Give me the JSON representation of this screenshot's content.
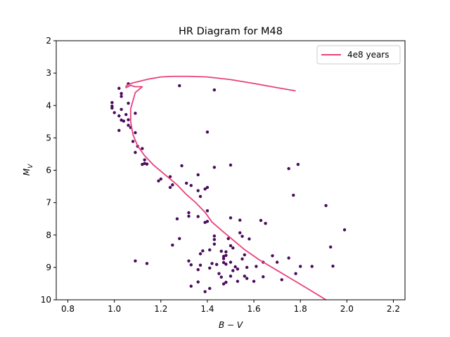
{
  "chart_data": {
    "type": "scatter",
    "title": "HR Diagram for M48",
    "xlabel": "B − V",
    "ylabel_main": "M",
    "ylabel_sub": "V",
    "xlim": [
      0.75,
      2.25
    ],
    "ylim": [
      10,
      2
    ],
    "y_inverted": true,
    "xticks": [
      0.8,
      1.0,
      1.2,
      1.4,
      1.6,
      1.8,
      2.0,
      2.2
    ],
    "xtick_labels": [
      "0.8",
      "1.0",
      "1.2",
      "1.4",
      "1.6",
      "1.8",
      "2.0",
      "2.2"
    ],
    "yticks": [
      2,
      3,
      4,
      5,
      6,
      7,
      8,
      9,
      10
    ],
    "ytick_labels": [
      "2",
      "3",
      "4",
      "5",
      "6",
      "7",
      "8",
      "9",
      "10"
    ],
    "grid": false,
    "legend_position": "top-right",
    "colors": {
      "points": "#4b0a5e",
      "isochrone": "#e8427a"
    },
    "points": [
      [
        1.06,
        3.33
      ],
      [
        1.02,
        3.47
      ],
      [
        1.03,
        3.63
      ],
      [
        1.03,
        3.72
      ],
      [
        1.28,
        3.39
      ],
      [
        1.43,
        3.52
      ],
      [
        0.99,
        3.91
      ],
      [
        0.99,
        4.02
      ],
      [
        0.99,
        4.08
      ],
      [
        1.03,
        4.12
      ],
      [
        1.0,
        4.22
      ],
      [
        1.09,
        4.24
      ],
      [
        1.06,
        3.93
      ],
      [
        1.02,
        4.32
      ],
      [
        1.05,
        4.28
      ],
      [
        1.03,
        4.45
      ],
      [
        1.04,
        4.48
      ],
      [
        1.06,
        4.44
      ],
      [
        1.07,
        4.68
      ],
      [
        1.02,
        4.77
      ],
      [
        1.06,
        4.61
      ],
      [
        1.09,
        4.84
      ],
      [
        1.4,
        4.82
      ],
      [
        1.08,
        5.11
      ],
      [
        1.1,
        5.26
      ],
      [
        1.09,
        5.45
      ],
      [
        1.12,
        5.33
      ],
      [
        1.13,
        5.68
      ],
      [
        1.13,
        5.79
      ],
      [
        1.12,
        5.82
      ],
      [
        1.14,
        5.81
      ],
      [
        1.29,
        5.86
      ],
      [
        1.5,
        5.84
      ],
      [
        1.43,
        5.91
      ],
      [
        1.75,
        5.95
      ],
      [
        1.79,
        5.82
      ],
      [
        1.24,
        6.2
      ],
      [
        1.2,
        6.27
      ],
      [
        1.19,
        6.33
      ],
      [
        1.36,
        6.14
      ],
      [
        1.31,
        6.4
      ],
      [
        1.33,
        6.47
      ],
      [
        1.25,
        6.45
      ],
      [
        1.24,
        6.53
      ],
      [
        1.36,
        6.63
      ],
      [
        1.39,
        6.58
      ],
      [
        1.4,
        6.53
      ],
      [
        1.37,
        6.81
      ],
      [
        1.77,
        6.77
      ],
      [
        1.91,
        7.09
      ],
      [
        1.4,
        7.25
      ],
      [
        1.32,
        7.31
      ],
      [
        1.32,
        7.42
      ],
      [
        1.27,
        7.5
      ],
      [
        1.36,
        7.43
      ],
      [
        1.4,
        7.58
      ],
      [
        1.39,
        7.61
      ],
      [
        1.5,
        7.47
      ],
      [
        1.54,
        7.54
      ],
      [
        1.63,
        7.55
      ],
      [
        1.65,
        7.64
      ],
      [
        1.28,
        8.11
      ],
      [
        1.25,
        8.31
      ],
      [
        1.43,
        8.03
      ],
      [
        1.43,
        8.14
      ],
      [
        1.43,
        8.28
      ],
      [
        1.49,
        8.11
      ],
      [
        1.5,
        8.33
      ],
      [
        1.51,
        8.4
      ],
      [
        1.54,
        7.93
      ],
      [
        1.55,
        8.04
      ],
      [
        1.58,
        8.12
      ],
      [
        1.99,
        7.84
      ],
      [
        1.38,
        8.49
      ],
      [
        1.37,
        8.58
      ],
      [
        1.41,
        8.46
      ],
      [
        1.46,
        8.5
      ],
      [
        1.47,
        8.66
      ],
      [
        1.48,
        8.52
      ],
      [
        1.48,
        8.63
      ],
      [
        1.47,
        8.73
      ],
      [
        1.55,
        8.74
      ],
      [
        1.56,
        8.61
      ],
      [
        1.68,
        8.64
      ],
      [
        1.75,
        8.71
      ],
      [
        1.93,
        8.37
      ],
      [
        1.09,
        8.8
      ],
      [
        1.32,
        8.8
      ],
      [
        1.33,
        8.92
      ],
      [
        1.14,
        8.88
      ],
      [
        1.37,
        8.93
      ],
      [
        1.42,
        8.88
      ],
      [
        1.44,
        8.91
      ],
      [
        1.47,
        8.85
      ],
      [
        1.48,
        8.9
      ],
      [
        1.5,
        8.84
      ],
      [
        1.52,
        8.98
      ],
      [
        1.53,
        9.05
      ],
      [
        1.57,
        9.0
      ],
      [
        1.61,
        8.97
      ],
      [
        1.64,
        8.84
      ],
      [
        1.7,
        8.84
      ],
      [
        1.8,
        8.97
      ],
      [
        1.85,
        8.97
      ],
      [
        1.94,
        8.96
      ],
      [
        1.36,
        9.07
      ],
      [
        1.41,
        9.02
      ],
      [
        1.45,
        9.19
      ],
      [
        1.46,
        9.3
      ],
      [
        1.5,
        9.27
      ],
      [
        1.51,
        9.1
      ],
      [
        1.56,
        9.27
      ],
      [
        1.57,
        9.34
      ],
      [
        1.6,
        9.43
      ],
      [
        1.64,
        9.29
      ],
      [
        1.72,
        9.38
      ],
      [
        1.78,
        9.19
      ],
      [
        1.33,
        9.58
      ],
      [
        1.36,
        9.45
      ],
      [
        1.39,
        9.75
      ],
      [
        1.41,
        9.65
      ],
      [
        1.47,
        9.51
      ],
      [
        1.48,
        9.46
      ],
      [
        1.53,
        9.43
      ]
    ],
    "series": [
      {
        "name": "4e8 years",
        "kind": "line",
        "x": [
          1.78,
          1.7,
          1.6,
          1.5,
          1.4,
          1.32,
          1.25,
          1.2,
          1.15,
          1.11,
          1.08,
          1.06,
          1.05,
          1.05,
          1.07,
          1.09,
          1.12,
          1.09,
          1.08,
          1.07,
          1.07,
          1.08,
          1.1,
          1.13,
          1.17,
          1.22,
          1.27,
          1.31,
          1.35,
          1.39,
          1.42,
          1.46,
          1.51,
          1.56,
          1.62,
          1.69,
          1.76,
          1.83,
          1.91
        ],
        "y": [
          3.55,
          3.45,
          3.32,
          3.2,
          3.12,
          3.1,
          3.1,
          3.12,
          3.18,
          3.25,
          3.3,
          3.36,
          3.4,
          3.45,
          3.38,
          3.42,
          3.42,
          3.6,
          3.85,
          4.1,
          4.5,
          4.9,
          5.25,
          5.55,
          5.85,
          6.15,
          6.45,
          6.75,
          7.0,
          7.3,
          7.6,
          7.85,
          8.15,
          8.45,
          8.75,
          9.05,
          9.35,
          9.65,
          10.0
        ]
      }
    ]
  }
}
